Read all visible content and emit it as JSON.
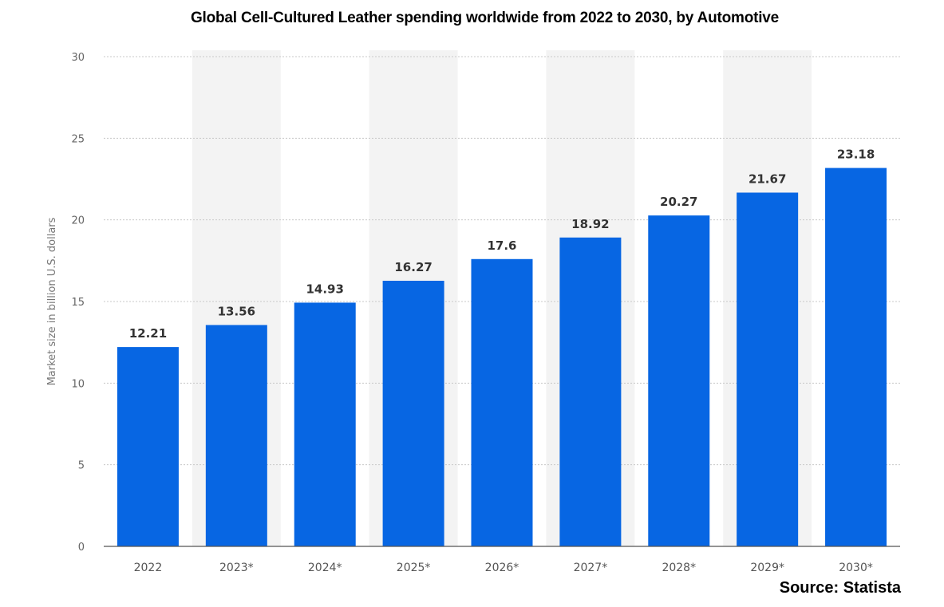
{
  "chart_data": {
    "type": "bar",
    "title": "Global Cell-Cultured Leather spending worldwide from 2022 to 2030, by Automotive",
    "ylabel": "Market size in billion U.S. dollars",
    "xlabel": "",
    "categories": [
      "2022",
      "2023*",
      "2024*",
      "2025*",
      "2026*",
      "2027*",
      "2028*",
      "2029*",
      "2030*"
    ],
    "values": [
      12.21,
      13.56,
      14.93,
      16.27,
      17.6,
      18.92,
      20.27,
      21.67,
      23.18
    ],
    "value_labels": [
      "12.21",
      "13.56",
      "14.93",
      "16.27",
      "17.6",
      "18.92",
      "20.27",
      "21.67",
      "23.18"
    ],
    "ylim": [
      0,
      30
    ],
    "yticks": [
      0,
      5,
      10,
      15,
      20,
      25,
      30
    ],
    "grid": true,
    "bar_color": "#0766e3",
    "band_color": "#f3f3f3",
    "source": "Source: Statista"
  }
}
